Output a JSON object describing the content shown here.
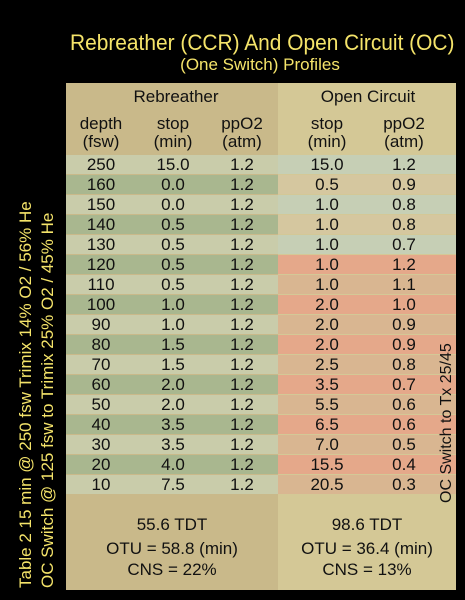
{
  "title": "Rebreather (CCR) And Open Circuit (OC)",
  "subtitle": "(One Switch) Profiles",
  "side_labels": {
    "line1": "Table 2   15 min @ 250 fsw   Trimix  14% O2 / 56% He",
    "line2": "OC Switch @ 125 fsw to Trimix 25% O2 / 45% He"
  },
  "oc_switch_note": "OC Switch to Tx 25/45",
  "headers": {
    "rebreather": "Rebreather",
    "open_circuit": "Open Circuit",
    "depth": "depth",
    "depth_unit": "(fsw)",
    "stop": "stop",
    "stop_unit": "(min)",
    "ppo2": "ppO2",
    "ppo2_unit": "(atm)",
    "oc_stop": "stop",
    "oc_stop_unit": "(min)",
    "oc_ppo2": "ppO2",
    "oc_ppo2_unit": "(atm)"
  },
  "rows": [
    {
      "depth": "250",
      "ccr_stop": "15.0",
      "ccr_ppo2": "1.2",
      "oc_stop": "15.0",
      "oc_ppo2": "1.2",
      "zone": "a"
    },
    {
      "depth": "160",
      "ccr_stop": "0.0",
      "ccr_ppo2": "1.2",
      "oc_stop": "0.5",
      "oc_ppo2": "0.9",
      "zone": "a"
    },
    {
      "depth": "150",
      "ccr_stop": "0.0",
      "ccr_ppo2": "1.2",
      "oc_stop": "1.0",
      "oc_ppo2": "0.8",
      "zone": "a"
    },
    {
      "depth": "140",
      "ccr_stop": "0.5",
      "ccr_ppo2": "1.2",
      "oc_stop": "1.0",
      "oc_ppo2": "0.8",
      "zone": "a"
    },
    {
      "depth": "130",
      "ccr_stop": "0.5",
      "ccr_ppo2": "1.2",
      "oc_stop": "1.0",
      "oc_ppo2": "0.7",
      "zone": "a"
    },
    {
      "depth": "120",
      "ccr_stop": "0.5",
      "ccr_ppo2": "1.2",
      "oc_stop": "1.0",
      "oc_ppo2": "1.2",
      "zone": "b"
    },
    {
      "depth": "110",
      "ccr_stop": "0.5",
      "ccr_ppo2": "1.2",
      "oc_stop": "1.0",
      "oc_ppo2": "1.1",
      "zone": "b"
    },
    {
      "depth": "100",
      "ccr_stop": "1.0",
      "ccr_ppo2": "1.2",
      "oc_stop": "2.0",
      "oc_ppo2": "1.0",
      "zone": "b"
    },
    {
      "depth": "90",
      "ccr_stop": "1.0",
      "ccr_ppo2": "1.2",
      "oc_stop": "2.0",
      "oc_ppo2": "0.9",
      "zone": "b"
    },
    {
      "depth": "80",
      "ccr_stop": "1.5",
      "ccr_ppo2": "1.2",
      "oc_stop": "2.0",
      "oc_ppo2": "0.9",
      "zone": "b"
    },
    {
      "depth": "70",
      "ccr_stop": "1.5",
      "ccr_ppo2": "1.2",
      "oc_stop": "2.5",
      "oc_ppo2": "0.8",
      "zone": "b"
    },
    {
      "depth": "60",
      "ccr_stop": "2.0",
      "ccr_ppo2": "1.2",
      "oc_stop": "3.5",
      "oc_ppo2": "0.7",
      "zone": "b"
    },
    {
      "depth": "50",
      "ccr_stop": "2.0",
      "ccr_ppo2": "1.2",
      "oc_stop": "5.5",
      "oc_ppo2": "0.6",
      "zone": "b"
    },
    {
      "depth": "40",
      "ccr_stop": "3.5",
      "ccr_ppo2": "1.2",
      "oc_stop": "6.5",
      "oc_ppo2": "0.6",
      "zone": "b"
    },
    {
      "depth": "30",
      "ccr_stop": "3.5",
      "ccr_ppo2": "1.2",
      "oc_stop": "7.0",
      "oc_ppo2": "0.5",
      "zone": "b"
    },
    {
      "depth": "20",
      "ccr_stop": "4.0",
      "ccr_ppo2": "1.2",
      "oc_stop": "15.5",
      "oc_ppo2": "0.4",
      "zone": "b"
    },
    {
      "depth": "10",
      "ccr_stop": "7.5",
      "ccr_ppo2": "1.2",
      "oc_stop": "20.5",
      "oc_ppo2": "0.3",
      "zone": "b"
    }
  ],
  "footer": {
    "ccr_tdt": "55.6 TDT",
    "ccr_otu": "OTU = 58.8 (min)",
    "ccr_cns": "CNS = 22%",
    "oc_tdt": "98.6 TDT",
    "oc_otu": "OTU = 36.4 (min)",
    "oc_cns": "CNS = 13%"
  },
  "colors": {
    "title": "#f5e46a",
    "ccr_row_light": "#c9ccaa",
    "ccr_row_dark": "#a9b78f",
    "oc_row_a_light": "#c6cfb5",
    "oc_row_a_dark": "#d5c79f",
    "oc_row_b_light": "#e5a88a",
    "oc_row_b_dark": "#d9b691"
  }
}
